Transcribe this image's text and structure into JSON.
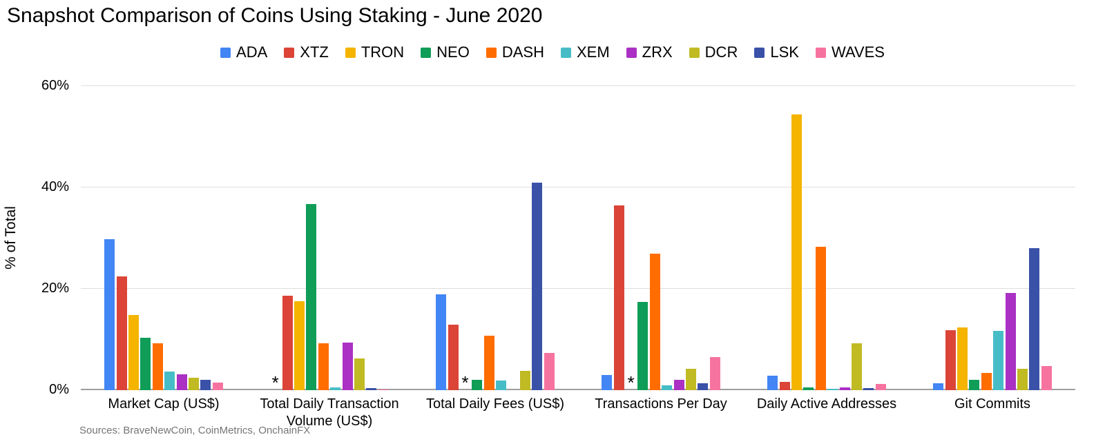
{
  "title": "Snapshot Comparison of Coins Using Staking - June 2020",
  "source_note": "Sources: BraveNewCoin, CoinMetrics, OnchainFX",
  "no_data_marker": "*",
  "chart_data": {
    "type": "bar",
    "title": "Snapshot Comparison of Coins Using Staking - June 2020",
    "xlabel": "",
    "ylabel": "% of Total",
    "ylim": [
      0,
      62.7
    ],
    "yticks": [
      0,
      20,
      40,
      60
    ],
    "ytick_labels": [
      "0%",
      "20%",
      "40%",
      "60%"
    ],
    "grid": true,
    "legend_position": "top",
    "categories": [
      "Market Cap (US$)",
      "Total Daily Transaction Volume (US$)",
      "Total Daily Fees (US$)",
      "Transactions Per Day",
      "Daily Active Addresses",
      "Git Commits"
    ],
    "series": [
      {
        "name": "ADA",
        "color": "#4285F4",
        "values": [
          29.8,
          null,
          18.9,
          3.0,
          2.8,
          1.4
        ]
      },
      {
        "name": "XTZ",
        "color": "#DB4437",
        "values": [
          22.4,
          18.6,
          12.9,
          36.4,
          1.6,
          11.8
        ]
      },
      {
        "name": "TRON",
        "color": "#F4B400",
        "values": [
          14.8,
          17.5,
          null,
          null,
          54.4,
          12.4
        ]
      },
      {
        "name": "NEO",
        "color": "#0F9D58",
        "values": [
          10.4,
          36.8,
          2.1,
          17.4,
          0.5,
          2.0
        ]
      },
      {
        "name": "DASH",
        "color": "#FF6D01",
        "values": [
          9.3,
          9.3,
          10.7,
          26.9,
          28.3,
          3.4
        ]
      },
      {
        "name": "XEM",
        "color": "#46BDC6",
        "values": [
          3.7,
          0.6,
          1.9,
          1.0,
          0.3,
          11.7
        ]
      },
      {
        "name": "ZRX",
        "color": "#AB30C4",
        "values": [
          3.1,
          9.4,
          0,
          2.0,
          0.6,
          19.2
        ]
      },
      {
        "name": "DCR",
        "color": "#C0BA23",
        "values": [
          2.4,
          6.2,
          3.8,
          4.2,
          9.2,
          4.2
        ]
      },
      {
        "name": "LSK",
        "color": "#3A51A8",
        "values": [
          2.1,
          0.4,
          41.0,
          1.4,
          0.4,
          28.0
        ]
      },
      {
        "name": "WAVES",
        "color": "#F7739F",
        "values": [
          1.5,
          0.2,
          7.4,
          6.5,
          1.2,
          4.7
        ]
      }
    ],
    "annotations": "Cells with value null are shown with an asterisk (*) footnote marker instead of a bar"
  }
}
